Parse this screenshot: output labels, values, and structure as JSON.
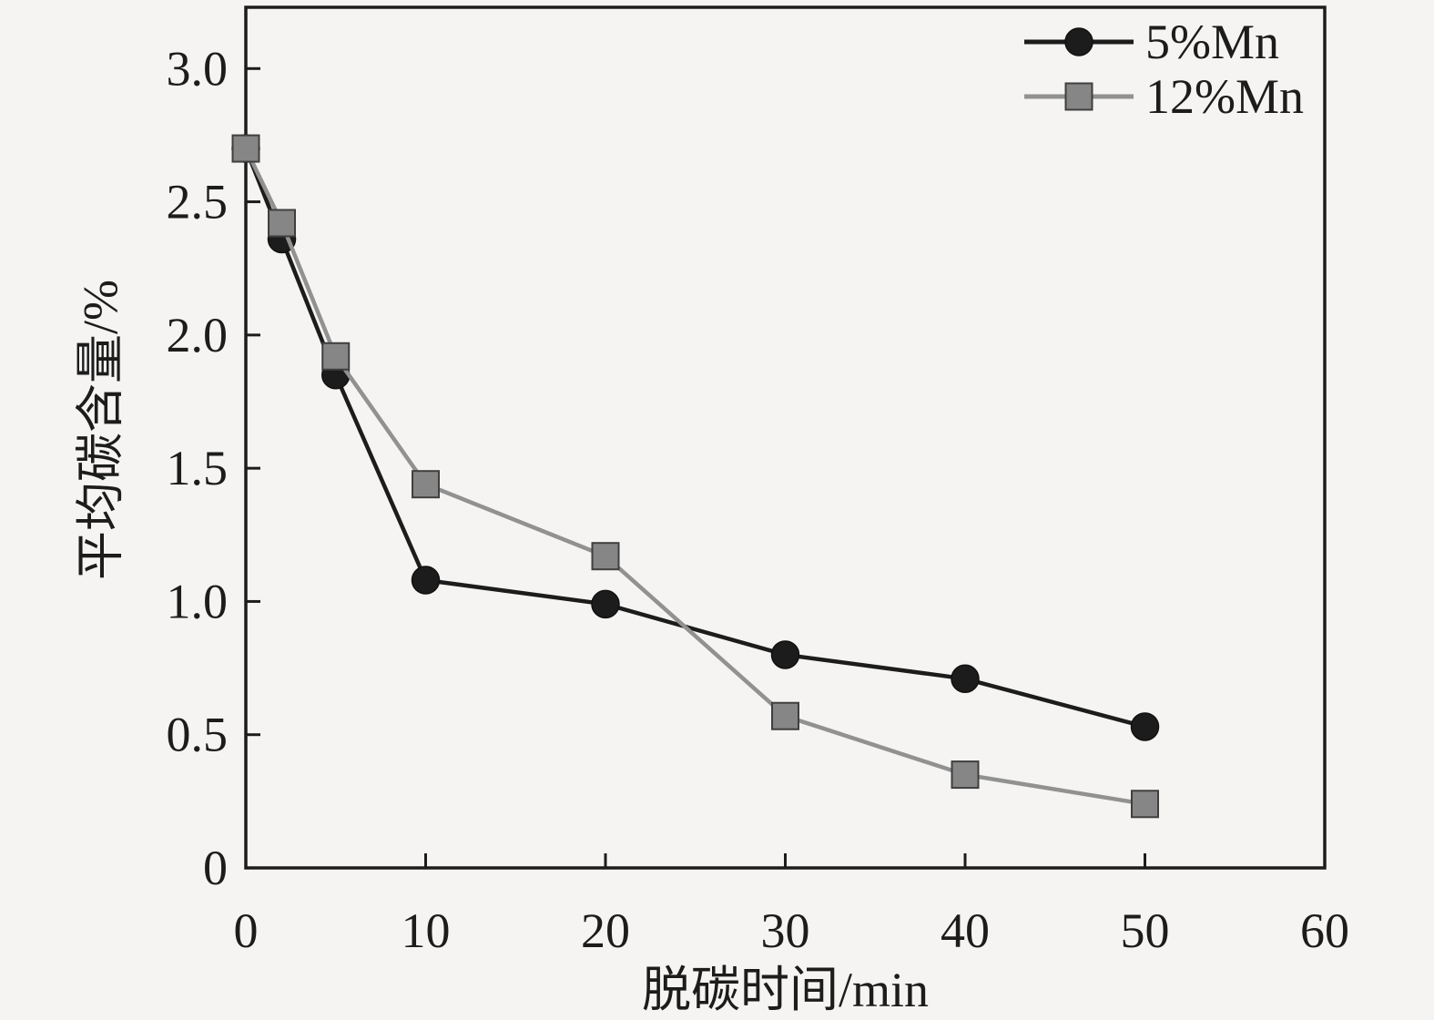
{
  "figure": {
    "background": "#f5f4f2",
    "axis_color": "#1c1c1c",
    "tick_label_color": "#1c1c1c"
  },
  "chart_data": {
    "type": "line",
    "title": "",
    "xlabel": "脱碳时间/min",
    "ylabel": "平均碳含量/%",
    "x": [
      0,
      2,
      5,
      10,
      20,
      30,
      40,
      50
    ],
    "series": [
      {
        "name": "5%Mn",
        "marker": "circle",
        "color": "#1c1c1c",
        "marker_fill": "#1c1c1c",
        "marker_edge": "#111111",
        "values": [
          2.7,
          2.36,
          1.85,
          1.08,
          0.99,
          0.8,
          0.71,
          0.53
        ]
      },
      {
        "name": "12%Mn",
        "marker": "square",
        "color": "#919191",
        "marker_fill": "#868686",
        "marker_edge": "#3f3f3f",
        "values": [
          2.7,
          2.42,
          1.92,
          1.44,
          1.17,
          0.57,
          0.35,
          0.24
        ]
      }
    ],
    "xlim": [
      0,
      60
    ],
    "ylim": [
      0,
      3.23
    ],
    "xticks": [
      [
        0,
        "0"
      ],
      [
        10,
        "10"
      ],
      [
        20,
        "20"
      ],
      [
        30,
        "30"
      ],
      [
        40,
        "40"
      ],
      [
        50,
        "50"
      ],
      [
        60,
        "60"
      ]
    ],
    "yticks": [
      [
        0,
        "0"
      ],
      [
        0.5,
        "0.5"
      ],
      [
        1,
        "1.0"
      ],
      [
        1.5,
        "1.5"
      ],
      [
        2,
        "2.0"
      ],
      [
        2.5,
        "2.5"
      ],
      [
        3,
        "3.0"
      ]
    ],
    "grid": false,
    "legend_position": "top-right-inside"
  }
}
